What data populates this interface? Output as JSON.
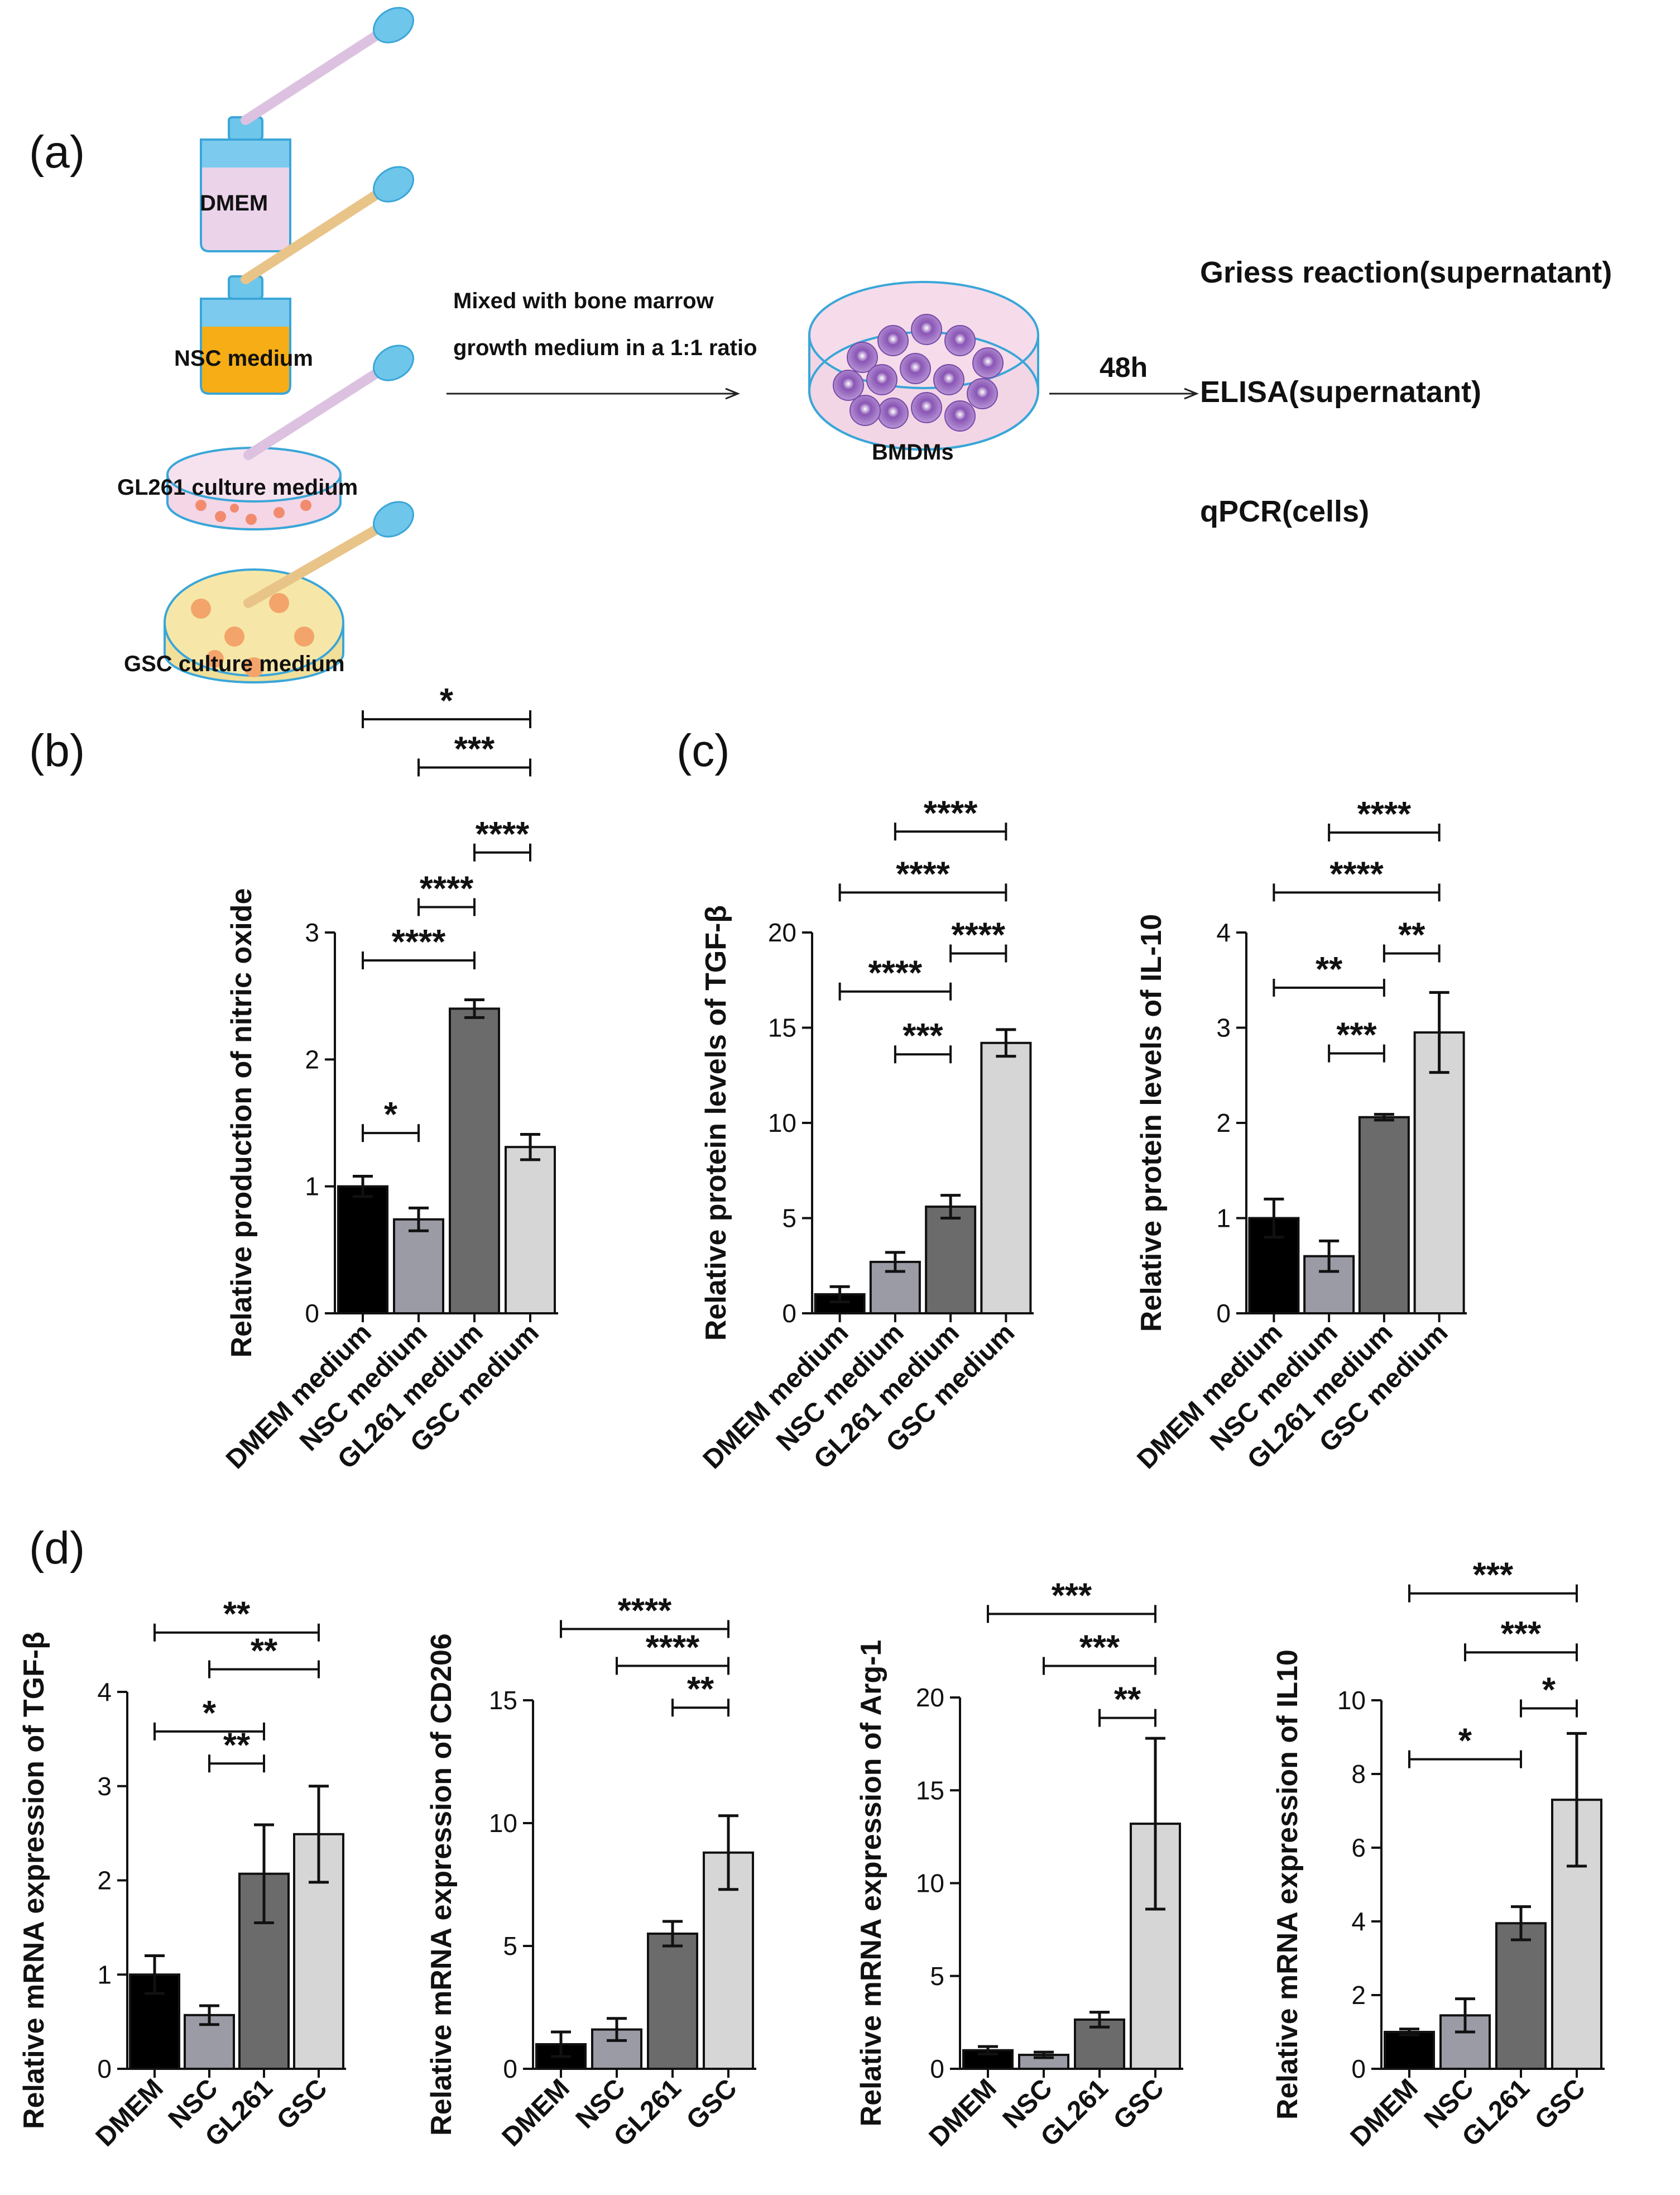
{
  "panel_labels": {
    "a": "(a)",
    "b": "(b)",
    "c": "(c)",
    "d": "(d)"
  },
  "schematic": {
    "sources": [
      "DMEM",
      "NSC medium",
      "GL261 culture medium",
      "GSC culture medium"
    ],
    "mix_line1": "Mixed with bone marrow",
    "mix_line2": "growth medium in a 1:1 ratio",
    "dish_label": "BMDMs",
    "time": "48h",
    "assays": [
      "Griess reaction(supernatant)",
      "ELISA(supernatant)",
      "qPCR(cells)"
    ]
  },
  "colors": {
    "DMEM": "#000000",
    "NSC": "#9b9ba6",
    "GL261": "#6b6b6b",
    "GSC": "#d6d6d6"
  },
  "chart_data": [
    {
      "id": "b",
      "type": "bar",
      "panel": "(b)",
      "ylabel": "Relative production of nitric oxide",
      "categories": [
        "DMEM medium",
        "NSC medium",
        "GL261 medium",
        "GSC medium"
      ],
      "values": [
        1.0,
        0.74,
        2.4,
        1.31
      ],
      "errors": [
        0.08,
        0.09,
        0.07,
        0.1
      ],
      "ylim": [
        0,
        3
      ],
      "ticks": [
        0,
        1,
        2,
        3
      ],
      "sig": [
        {
          "from": 0,
          "to": 1,
          "label": "*",
          "y": 1.42
        },
        {
          "from": 0,
          "to": 2,
          "label": "****",
          "y": 2.78
        },
        {
          "from": 1,
          "to": 2,
          "label": "****",
          "y": 3.2
        },
        {
          "from": 2,
          "to": 3,
          "label": "****",
          "y": 3.63
        },
        {
          "from": 1,
          "to": 3,
          "label": "***",
          "y": 4.3
        },
        {
          "from": 0,
          "to": 3,
          "label": "*",
          "y": 4.68
        }
      ]
    },
    {
      "id": "c1",
      "type": "bar",
      "panel": "(c)",
      "ylabel": "Relative protein levels of TGF-β",
      "categories": [
        "DMEM medium",
        "NSC medium",
        "GL261 medium",
        "GSC medium"
      ],
      "values": [
        1.0,
        2.7,
        5.6,
        14.2
      ],
      "errors": [
        0.4,
        0.5,
        0.6,
        0.7
      ],
      "ylim": [
        0,
        20
      ],
      "ticks": [
        0,
        5,
        10,
        15,
        20
      ],
      "sig": [
        {
          "from": 1,
          "to": 2,
          "label": "***",
          "y": 13.6
        },
        {
          "from": 0,
          "to": 2,
          "label": "****",
          "y": 16.9
        },
        {
          "from": 2,
          "to": 3,
          "label": "****",
          "y": 18.9
        },
        {
          "from": 0,
          "to": 3,
          "label": "****",
          "y": 22.1
        },
        {
          "from": 1,
          "to": 3,
          "label": "****",
          "y": 25.3
        }
      ]
    },
    {
      "id": "c2",
      "type": "bar",
      "ylabel": "Relative protein levels of IL-10",
      "categories": [
        "DMEM medium",
        "NSC medium",
        "GL261 medium",
        "GSC medium"
      ],
      "values": [
        1.0,
        0.6,
        2.06,
        2.95
      ],
      "errors": [
        0.2,
        0.16,
        0.03,
        0.42
      ],
      "ylim": [
        0,
        4
      ],
      "ticks": [
        0,
        1,
        2,
        3,
        4
      ],
      "sig": [
        {
          "from": 1,
          "to": 2,
          "label": "***",
          "y": 2.73
        },
        {
          "from": 0,
          "to": 2,
          "label": "**",
          "y": 3.42
        },
        {
          "from": 2,
          "to": 3,
          "label": "**",
          "y": 3.78
        },
        {
          "from": 0,
          "to": 3,
          "label": "****",
          "y": 4.42
        },
        {
          "from": 1,
          "to": 3,
          "label": "****",
          "y": 5.05
        }
      ]
    },
    {
      "id": "d1",
      "type": "bar",
      "panel": "(d)",
      "ylabel": "Relative mRNA expression of TGF-β",
      "categories": [
        "DMEM",
        "NSC",
        "GL261",
        "GSC"
      ],
      "values": [
        1.0,
        0.57,
        2.07,
        2.49
      ],
      "errors": [
        0.2,
        0.1,
        0.52,
        0.51
      ],
      "ylim": [
        0,
        4
      ],
      "ticks": [
        0,
        1,
        2,
        3,
        4
      ],
      "sig": [
        {
          "from": 1,
          "to": 2,
          "label": "**",
          "y": 3.24
        },
        {
          "from": 0,
          "to": 2,
          "label": "*",
          "y": 3.58
        },
        {
          "from": 1,
          "to": 3,
          "label": "**",
          "y": 4.24
        },
        {
          "from": 0,
          "to": 3,
          "label": "**",
          "y": 4.63
        }
      ]
    },
    {
      "id": "d2",
      "type": "bar",
      "ylabel": "Relative mRNA expression of CD206",
      "categories": [
        "DMEM",
        "NSC",
        "GL261",
        "GSC"
      ],
      "values": [
        1.0,
        1.6,
        5.5,
        8.8
      ],
      "errors": [
        0.5,
        0.45,
        0.5,
        1.5
      ],
      "ylim": [
        0,
        15
      ],
      "ticks": [
        0,
        5,
        10,
        15
      ],
      "sig": [
        {
          "from": 2,
          "to": 3,
          "label": "**",
          "y": 14.7
        },
        {
          "from": 1,
          "to": 3,
          "label": "****",
          "y": 16.4
        },
        {
          "from": 0,
          "to": 3,
          "label": "****",
          "y": 17.9
        }
      ]
    },
    {
      "id": "d3",
      "type": "bar",
      "ylabel": "Relative mRNA expression of Arg-1",
      "categories": [
        "DMEM",
        "NSC",
        "GL261",
        "GSC"
      ],
      "values": [
        1.0,
        0.75,
        2.65,
        13.2
      ],
      "errors": [
        0.2,
        0.15,
        0.4,
        4.6
      ],
      "ylim": [
        0,
        20
      ],
      "ticks": [
        0,
        5,
        10,
        15,
        20
      ],
      "sig": [
        {
          "from": 2,
          "to": 3,
          "label": "**",
          "y": 18.9
        },
        {
          "from": 1,
          "to": 3,
          "label": "***",
          "y": 21.7
        },
        {
          "from": 0,
          "to": 3,
          "label": "***",
          "y": 24.5
        }
      ]
    },
    {
      "id": "d4",
      "type": "bar",
      "ylabel": "Relative mRNA expression of IL10",
      "categories": [
        "DMEM",
        "NSC",
        "GL261",
        "GSC"
      ],
      "values": [
        1.0,
        1.45,
        3.95,
        7.3
      ],
      "errors": [
        0.08,
        0.45,
        0.45,
        1.8
      ],
      "ylim": [
        0,
        10
      ],
      "ticks": [
        0,
        2,
        4,
        6,
        8,
        10
      ],
      "sig": [
        {
          "from": 0,
          "to": 2,
          "label": "*",
          "y": 8.4
        },
        {
          "from": 2,
          "to": 3,
          "label": "*",
          "y": 9.78
        },
        {
          "from": 1,
          "to": 3,
          "label": "***",
          "y": 11.3
        },
        {
          "from": 0,
          "to": 3,
          "label": "***",
          "y": 12.9
        }
      ]
    }
  ]
}
